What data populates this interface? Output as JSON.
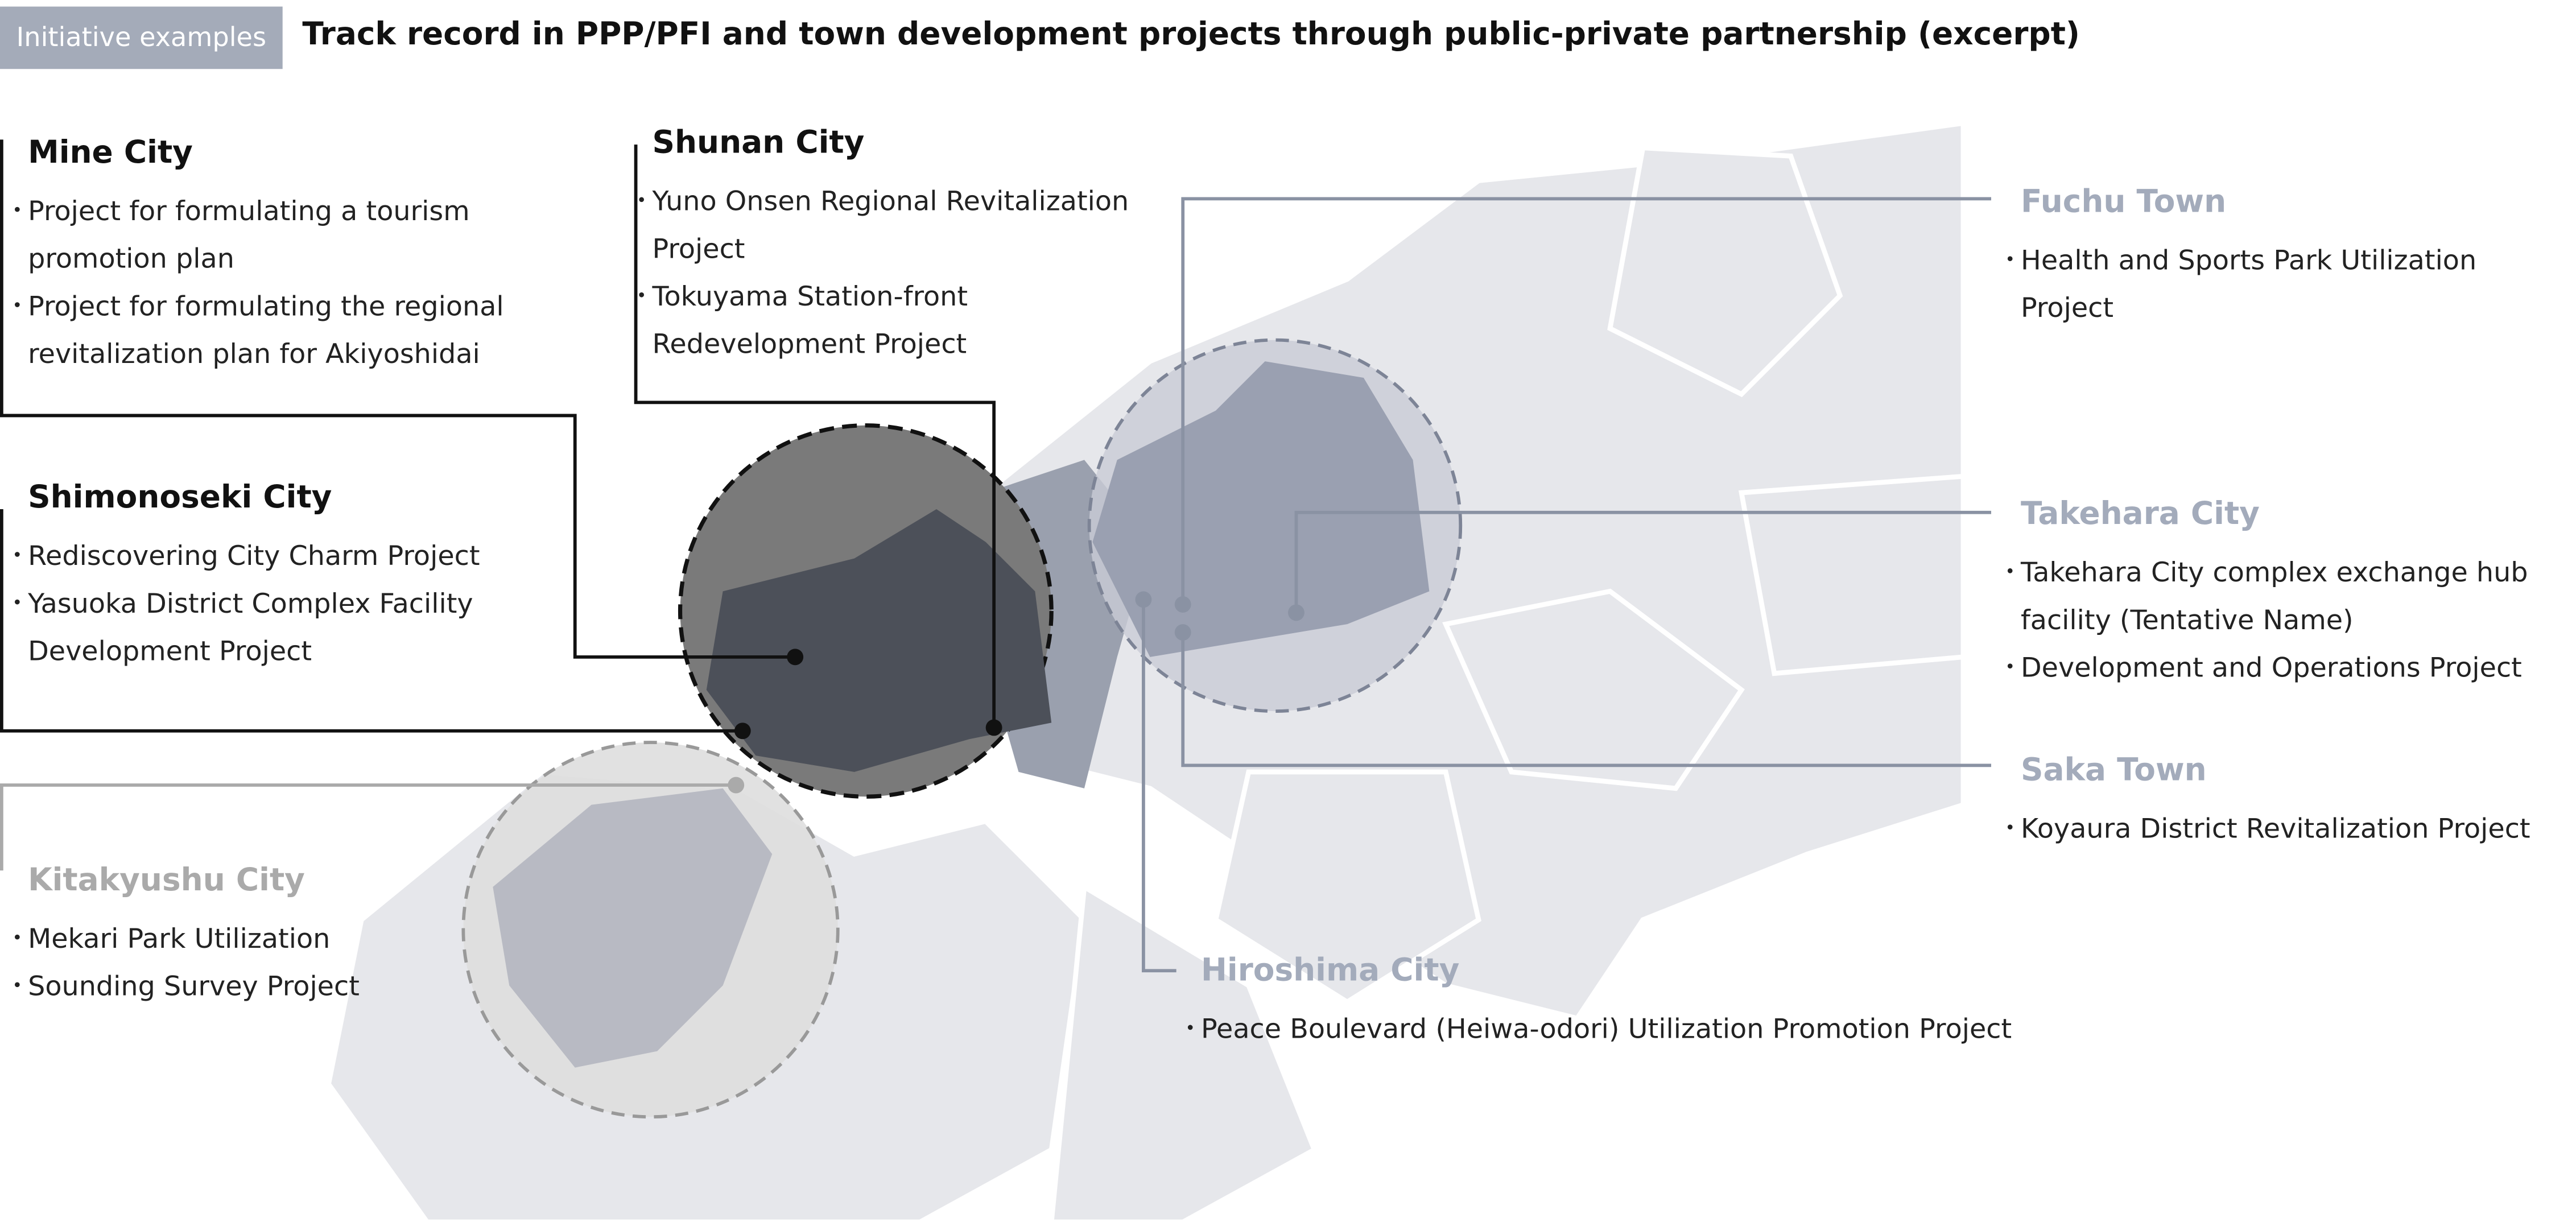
{
  "header": {
    "tag": "Initiative examples",
    "title": "Track record in PPP/PFI and town development projects through public-private partnership (excerpt)"
  },
  "cities": [
    {
      "name": "Mine City",
      "items": [
        "Project for formulating a tourism promotion plan",
        "Project for formulating the regional revitalization plan for Akiyoshidai"
      ]
    },
    {
      "name": "Shunan City",
      "items": [
        "Yuno Onsen Regional Revitalization Project",
        "Tokuyama Station-front Redevelopment Project"
      ]
    },
    {
      "name": "Shimonoseki City",
      "items": [
        "Rediscovering City Charm Project",
        "Yasuoka District Complex Facility Development Project"
      ]
    },
    {
      "name": "Kitakyushu City",
      "items": [
        "Mekari Park Utilization",
        "Sounding Survey Project"
      ]
    },
    {
      "name": "Fuchu Town",
      "items": [
        "Health and Sports Park Utilization Project"
      ]
    },
    {
      "name": "Takehara City",
      "items": [
        "Takehara City complex exchange hub facility (Tentative Name)",
        "Development and Operations Project"
      ]
    },
    {
      "name": "Saka Town",
      "items": [
        "Koyaura District Revitalization Project"
      ]
    },
    {
      "name": "Hiroshima City",
      "items": [
        "Peace Boulevard (Heiwa-odori) Utilization Promotion Project"
      ]
    }
  ]
}
